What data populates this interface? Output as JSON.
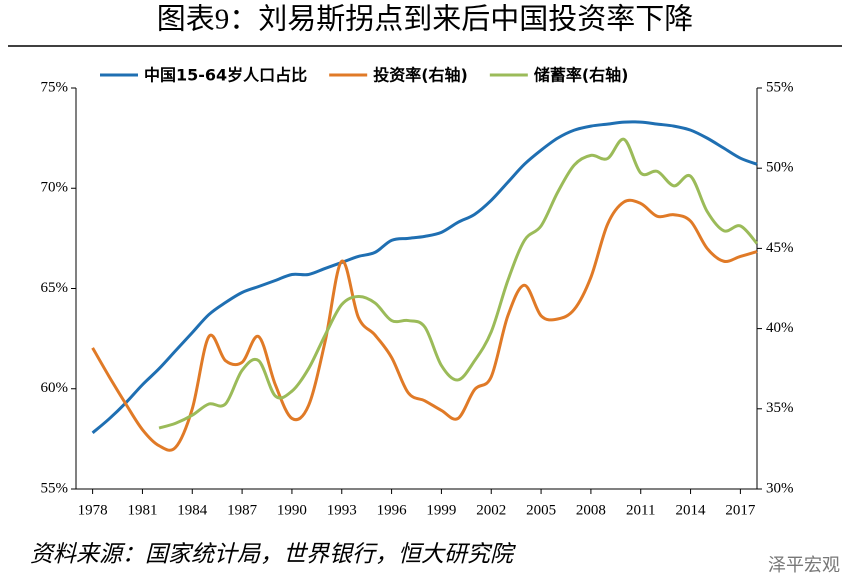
{
  "chart_data": {
    "type": "line",
    "title": "图表9：刘易斯拐点到来后中国投资率下降",
    "source": "资料来源：国家统计局，世界银行，恒大研究院",
    "watermark": "泽平宏观",
    "x": [
      1978,
      1979,
      1980,
      1981,
      1982,
      1983,
      1984,
      1985,
      1986,
      1987,
      1988,
      1989,
      1990,
      1991,
      1992,
      1993,
      1994,
      1995,
      1996,
      1997,
      1998,
      1999,
      2000,
      2001,
      2002,
      2003,
      2004,
      2005,
      2006,
      2007,
      2008,
      2009,
      2010,
      2011,
      2012,
      2013,
      2014,
      2015,
      2016,
      2017,
      2018
    ],
    "xlim": [
      1977,
      2018
    ],
    "xticks": [
      1978,
      1981,
      1984,
      1987,
      1990,
      1993,
      1996,
      1999,
      2002,
      2005,
      2008,
      2011,
      2014,
      2017
    ],
    "ylim": [
      55,
      75
    ],
    "yticks": [
      {
        "value": 55,
        "label": "55%"
      },
      {
        "value": 60,
        "label": "60%"
      },
      {
        "value": 65,
        "label": "65%"
      },
      {
        "value": 70,
        "label": "70%"
      },
      {
        "value": 75,
        "label": "75%"
      }
    ],
    "y2lim": [
      30,
      55
    ],
    "y2ticks": [
      {
        "value": 30,
        "label": "30%"
      },
      {
        "value": 35,
        "label": "35%"
      },
      {
        "value": 40,
        "label": "40%"
      },
      {
        "value": 45,
        "label": "45%"
      },
      {
        "value": 50,
        "label": "50%"
      },
      {
        "value": 55,
        "label": "55%"
      }
    ],
    "grid": false,
    "legend": "top",
    "series": [
      {
        "name": "中国15-64岁人口占比",
        "color": "#1f6fb2",
        "values": [
          57.8,
          58.5,
          59.3,
          60.2,
          61.0,
          61.9,
          62.8,
          63.7,
          64.3,
          64.8,
          65.1,
          65.4,
          65.7,
          65.7,
          66.0,
          66.3,
          66.6,
          66.8,
          67.4,
          67.5,
          67.6,
          67.8,
          68.3,
          68.7,
          69.4,
          70.3,
          71.2,
          71.9,
          72.5,
          72.9,
          73.1,
          73.2,
          73.3,
          73.3,
          73.2,
          73.1,
          72.9,
          72.5,
          72.0,
          71.5,
          71.2
        ]
      },
      {
        "name": "投资率(右轴)",
        "color": "#e07a27",
        "axis": "y2",
        "values": [
          38.8,
          37.0,
          35.3,
          33.7,
          32.7,
          32.6,
          35.0,
          39.5,
          38.0,
          37.9,
          39.5,
          36.5,
          34.4,
          35.2,
          39.2,
          44.2,
          40.7,
          39.6,
          38.2,
          36.0,
          35.5,
          34.9,
          34.4,
          36.2,
          37.0,
          40.8,
          42.7,
          40.8,
          40.6,
          41.2,
          43.2,
          46.5,
          47.9,
          47.8,
          47.0,
          47.1,
          46.7,
          45.0,
          44.2,
          44.5,
          44.8
        ]
      },
      {
        "name": "储蓄率(右轴)",
        "color": "#9bbb59",
        "axis": "y2",
        "values": [
          null,
          null,
          null,
          null,
          33.8,
          34.1,
          34.6,
          35.3,
          35.3,
          37.4,
          38.0,
          35.8,
          36.1,
          37.5,
          39.6,
          41.5,
          42.0,
          41.6,
          40.5,
          40.5,
          40.1,
          37.7,
          36.8,
          38.0,
          39.8,
          43.0,
          45.5,
          46.4,
          48.5,
          50.2,
          50.8,
          50.6,
          51.8,
          49.7,
          49.8,
          48.9,
          49.5,
          47.3,
          46.1,
          46.4,
          45.3
        ]
      }
    ]
  }
}
